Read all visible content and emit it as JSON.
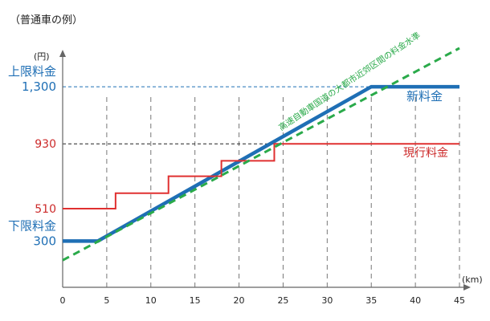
{
  "caption": "（普通車の例）",
  "chart_data": {
    "type": "line",
    "x_unit": "(km)",
    "y_unit": "(円)",
    "xlim": [
      0,
      45
    ],
    "ylim": [
      0,
      1550
    ],
    "x_ticks": [
      0,
      5,
      10,
      15,
      20,
      25,
      30,
      35,
      40,
      45
    ],
    "vertical_dashed_at": [
      5,
      10,
      15,
      20,
      25,
      30,
      35,
      40,
      45
    ],
    "y_labels": [
      {
        "value": 300,
        "text": "300",
        "style": "blue"
      },
      {
        "value": 510,
        "text": "510",
        "style": "red"
      },
      {
        "value": 930,
        "text": "930",
        "style": "black"
      },
      {
        "value": 1300,
        "text": "1,300",
        "style": "blue"
      }
    ],
    "upper_limit_label": "上限料金",
    "lower_limit_label": "下限料金",
    "reference_lines": [
      {
        "y": 930,
        "color": "#222222",
        "dash": "black"
      },
      {
        "y": 1300,
        "color": "#1f6fb5",
        "dash": "blue"
      }
    ],
    "series": [
      {
        "name": "新料金",
        "color": "#1f6fb5",
        "points": [
          [
            0,
            300
          ],
          [
            4,
            300
          ],
          [
            35,
            1300
          ],
          [
            45,
            1300
          ]
        ]
      },
      {
        "name": "現行料金",
        "color": "#e03030",
        "points": [
          [
            0,
            510
          ],
          [
            6,
            510
          ],
          [
            6,
            610
          ],
          [
            12,
            610
          ],
          [
            12,
            720
          ],
          [
            18,
            720
          ],
          [
            18,
            820
          ],
          [
            24,
            820
          ],
          [
            24,
            930
          ],
          [
            45,
            930
          ]
        ]
      },
      {
        "name": "高速自動車国道の大都市近郊区間の料金水準",
        "color": "#2aaa4a",
        "points": [
          [
            0,
            175
          ],
          [
            45,
            1550
          ]
        ],
        "dashed": true
      }
    ],
    "series_label_style": {
      "新料金": "blue",
      "現行料金": "red",
      "高速自動車国道の大都市近郊区間の料金水準": "green"
    }
  },
  "colors": {
    "blue": "#1f6fb5",
    "red": "#e03030",
    "green": "#2aaa4a",
    "axis": "#666666",
    "grid": "#777777"
  }
}
